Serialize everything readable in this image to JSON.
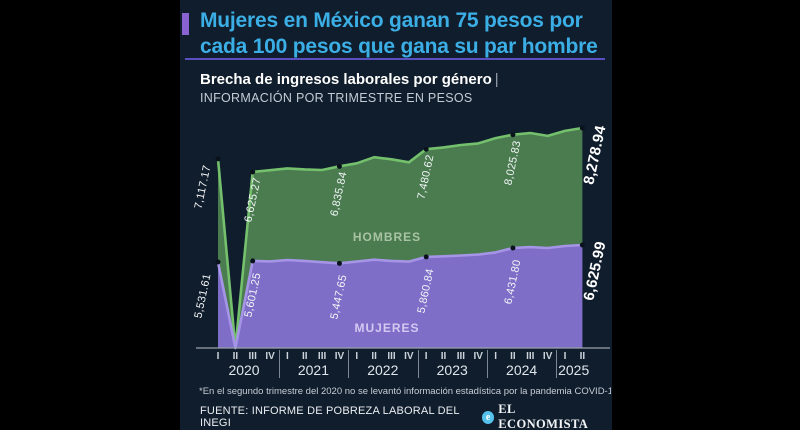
{
  "header": {
    "title_line1": "Mujeres en México ganan 75 pesos por",
    "title_line2": "cada 100 pesos que gana su par hombre",
    "title_color": "#3bafe5",
    "accent_color": "#8a63d2"
  },
  "chart_data": {
    "type": "area",
    "title": "Brecha de ingresos laborales por género",
    "title_separator": "|",
    "subtitle": "INFORMACIÓN POR TRIMESTRE EN PESOS",
    "unit": "pesos",
    "categories": [
      "2020-I",
      "2020-II",
      "2020-III",
      "2020-IV",
      "2021-I",
      "2021-II",
      "2021-III",
      "2021-IV",
      "2022-I",
      "2022-II",
      "2022-III",
      "2022-IV",
      "2023-I",
      "2023-II",
      "2023-III",
      "2023-IV",
      "2024-I",
      "2024-II",
      "2024-III",
      "2024-IV",
      "2025-I",
      "2025-II"
    ],
    "series": [
      {
        "name": "HOMBRES",
        "fill": "#4a7c50",
        "line": "#74c06d",
        "values": [
          7117.17,
          0,
          6625.27,
          6690,
          6760,
          6720,
          6700,
          6835.84,
          6950,
          7180,
          7100,
          6990,
          7480.62,
          7550,
          7640,
          7700,
          7900,
          8025.83,
          8090,
          7980,
          8170,
          8278.94
        ]
      },
      {
        "name": "MUJERES",
        "fill": "#7e6ec8",
        "line": "#a694e6",
        "values": [
          5531.61,
          0,
          5601.25,
          5570,
          5660,
          5600,
          5520,
          5447.65,
          5560,
          5680,
          5600,
          5560,
          5860.84,
          5900,
          5950,
          6010,
          6150,
          6431.8,
          6490,
          6430,
          6560,
          6625.99
        ]
      }
    ],
    "labeled_points": {
      "hombres": [
        {
          "index": 0,
          "label": "7,117.17"
        },
        {
          "index": 2,
          "label": "6,625.27"
        },
        {
          "index": 7,
          "label": "6,835.84"
        },
        {
          "index": 12,
          "label": "7,480.62"
        },
        {
          "index": 17,
          "label": "8,025.83"
        },
        {
          "index": 21,
          "label": "8,278.94",
          "bold": true
        }
      ],
      "mujeres": [
        {
          "index": 0,
          "label": "5,531.61"
        },
        {
          "index": 2,
          "label": "5,601.25"
        },
        {
          "index": 7,
          "label": "5,447.65"
        },
        {
          "index": 12,
          "label": "5,860.84"
        },
        {
          "index": 17,
          "label": "6,431.80"
        },
        {
          "index": 21,
          "label": "6,625.99",
          "bold": true
        }
      ]
    },
    "axis_years": [
      {
        "year": "2020",
        "quarters": [
          "I",
          "II",
          "III",
          "IV"
        ]
      },
      {
        "year": "2021",
        "quarters": [
          "I",
          "II",
          "III",
          "IV"
        ]
      },
      {
        "year": "2022",
        "quarters": [
          "I",
          "II",
          "III",
          "IV"
        ]
      },
      {
        "year": "2023",
        "quarters": [
          "I",
          "II",
          "III",
          "IV"
        ]
      },
      {
        "year": "2024",
        "quarters": [
          "I",
          "II",
          "III",
          "IV"
        ]
      },
      {
        "year": "2025",
        "quarters": [
          "I",
          "II"
        ]
      }
    ],
    "ylim": [
      0,
      8500
    ],
    "legend_position": "inside-areas",
    "grid": false
  },
  "footer": {
    "footnote": "*En el segundo trimestre del 2020 no se levantó información estadística por la pandemia COVID-19.",
    "source": "FUENTE: INFORME DE POBREZA LABORAL DEL INEGI",
    "brand": "EL ECONOMISTA",
    "brand_icon": "e"
  }
}
